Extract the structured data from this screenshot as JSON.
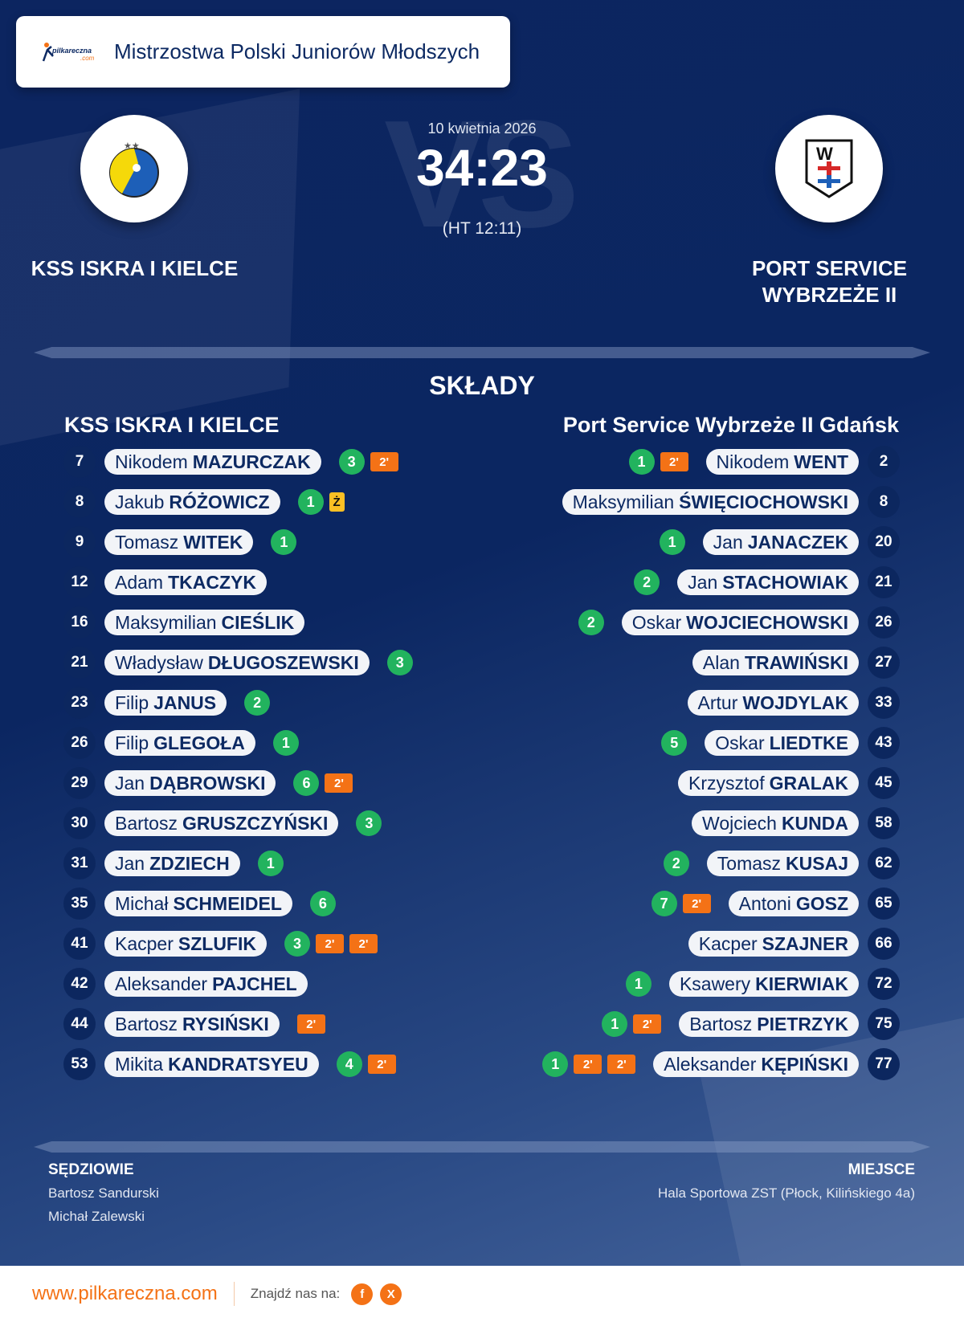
{
  "header": {
    "title": "Mistrzostwa Polski Juniorów Młodszych",
    "brand": "pilkareczna.com"
  },
  "match": {
    "date": "10 kwietnia 2026",
    "score": "34:23",
    "halftime": "(HT 12:11)",
    "watermark": "VS",
    "home": {
      "name": "KSS ISKRA I KIELCE"
    },
    "away": {
      "name_line1": "PORT SERVICE",
      "name_line2": "WYBRZEŻE II"
    }
  },
  "lineups": {
    "title": "SKŁADY",
    "home": {
      "title": "KSS ISKRA I KIELCE",
      "players": [
        {
          "num": "7",
          "first": "Nikodem",
          "last": "MAZURCZAK",
          "goals": "3",
          "pens": [
            "2'"
          ]
        },
        {
          "num": "8",
          "first": "Jakub",
          "last": "RÓŻOWICZ",
          "goals": "1",
          "pens": [
            "Ż"
          ]
        },
        {
          "num": "9",
          "first": "Tomasz",
          "last": "WITEK",
          "goals": "1",
          "pens": []
        },
        {
          "num": "12",
          "first": "Adam",
          "last": "TKACZYK",
          "goals": "",
          "pens": []
        },
        {
          "num": "16",
          "first": "Maksymilian",
          "last": "CIEŚLIK",
          "goals": "",
          "pens": []
        },
        {
          "num": "21",
          "first": "Władysław",
          "last": "DŁUGOSZEWSKI",
          "goals": "3",
          "pens": []
        },
        {
          "num": "23",
          "first": "Filip",
          "last": "JANUS",
          "goals": "2",
          "pens": []
        },
        {
          "num": "26",
          "first": "Filip",
          "last": "GLEGOŁA",
          "goals": "1",
          "pens": []
        },
        {
          "num": "29",
          "first": "Jan",
          "last": "DĄBROWSKI",
          "goals": "6",
          "pens": [
            "2'"
          ]
        },
        {
          "num": "30",
          "first": "Bartosz",
          "last": "GRUSZCZYŃSKI",
          "goals": "3",
          "pens": []
        },
        {
          "num": "31",
          "first": "Jan",
          "last": "ZDZIECH",
          "goals": "1",
          "pens": []
        },
        {
          "num": "35",
          "first": "Michał",
          "last": "SCHMEIDEL",
          "goals": "6",
          "pens": []
        },
        {
          "num": "41",
          "first": "Kacper",
          "last": "SZLUFIK",
          "goals": "3",
          "pens": [
            "2'",
            "2'"
          ]
        },
        {
          "num": "42",
          "first": "Aleksander",
          "last": "PAJCHEL",
          "goals": "",
          "pens": []
        },
        {
          "num": "44",
          "first": "Bartosz",
          "last": "RYSIŃSKI",
          "goals": "",
          "pens": [
            "2'"
          ]
        },
        {
          "num": "53",
          "first": "Mikita",
          "last": "KANDRATSYEU",
          "goals": "4",
          "pens": [
            "2'"
          ]
        }
      ]
    },
    "away": {
      "title": "Port Service Wybrzeże II Gdańsk",
      "players": [
        {
          "num": "2",
          "first": "Nikodem",
          "last": "WENT",
          "goals": "1",
          "pens": [
            "2'"
          ]
        },
        {
          "num": "8",
          "first": "Maksymilian",
          "last": "ŚWIĘCIOCHOWSKI",
          "goals": "",
          "pens": []
        },
        {
          "num": "20",
          "first": "Jan",
          "last": "JANACZEK",
          "goals": "1",
          "pens": []
        },
        {
          "num": "21",
          "first": "Jan",
          "last": "STACHOWIAK",
          "goals": "2",
          "pens": []
        },
        {
          "num": "26",
          "first": "Oskar",
          "last": "WOJCIECHOWSKI",
          "goals": "2",
          "pens": []
        },
        {
          "num": "27",
          "first": "Alan",
          "last": "TRAWIŃSKI",
          "goals": "",
          "pens": []
        },
        {
          "num": "33",
          "first": "Artur",
          "last": "WOJDYLAK",
          "goals": "",
          "pens": []
        },
        {
          "num": "43",
          "first": "Oskar",
          "last": "LIEDTKE",
          "goals": "5",
          "pens": []
        },
        {
          "num": "45",
          "first": "Krzysztof",
          "last": "GRALAK",
          "goals": "",
          "pens": []
        },
        {
          "num": "58",
          "first": "Wojciech",
          "last": "KUNDA",
          "goals": "",
          "pens": []
        },
        {
          "num": "62",
          "first": "Tomasz",
          "last": "KUSAJ",
          "goals": "2",
          "pens": []
        },
        {
          "num": "65",
          "first": "Antoni",
          "last": "GOSZ",
          "goals": "7",
          "pens": [
            "2'"
          ]
        },
        {
          "num": "66",
          "first": "Kacper",
          "last": "SZAJNER",
          "goals": "",
          "pens": []
        },
        {
          "num": "72",
          "first": "Ksawery",
          "last": "KIERWIAK",
          "goals": "1",
          "pens": []
        },
        {
          "num": "75",
          "first": "Bartosz",
          "last": "PIETRZYK",
          "goals": "1",
          "pens": [
            "2'"
          ]
        },
        {
          "num": "77",
          "first": "Aleksander",
          "last": "KĘPIŃSKI",
          "goals": "1",
          "pens": [
            "2'",
            "2'"
          ]
        }
      ]
    }
  },
  "officials": {
    "label": "SĘDZIOWIE",
    "names": [
      "Bartosz Sandurski",
      "Michał Zalewski"
    ]
  },
  "venue": {
    "label": "MIEJSCE",
    "value": "Hala Sportowa ZST (Płock, Kilińskiego 4a)"
  },
  "footer": {
    "site": "www.pilkareczna.com",
    "find": "Znajdź nas na:",
    "social": [
      {
        "icon": "facebook-icon",
        "glyph": "f"
      },
      {
        "icon": "x-icon",
        "glyph": "X"
      }
    ]
  },
  "colors": {
    "accent": "#f47216",
    "goal": "#22b35e",
    "navy": "#0d2a63",
    "yellow": "#fbbf24"
  }
}
